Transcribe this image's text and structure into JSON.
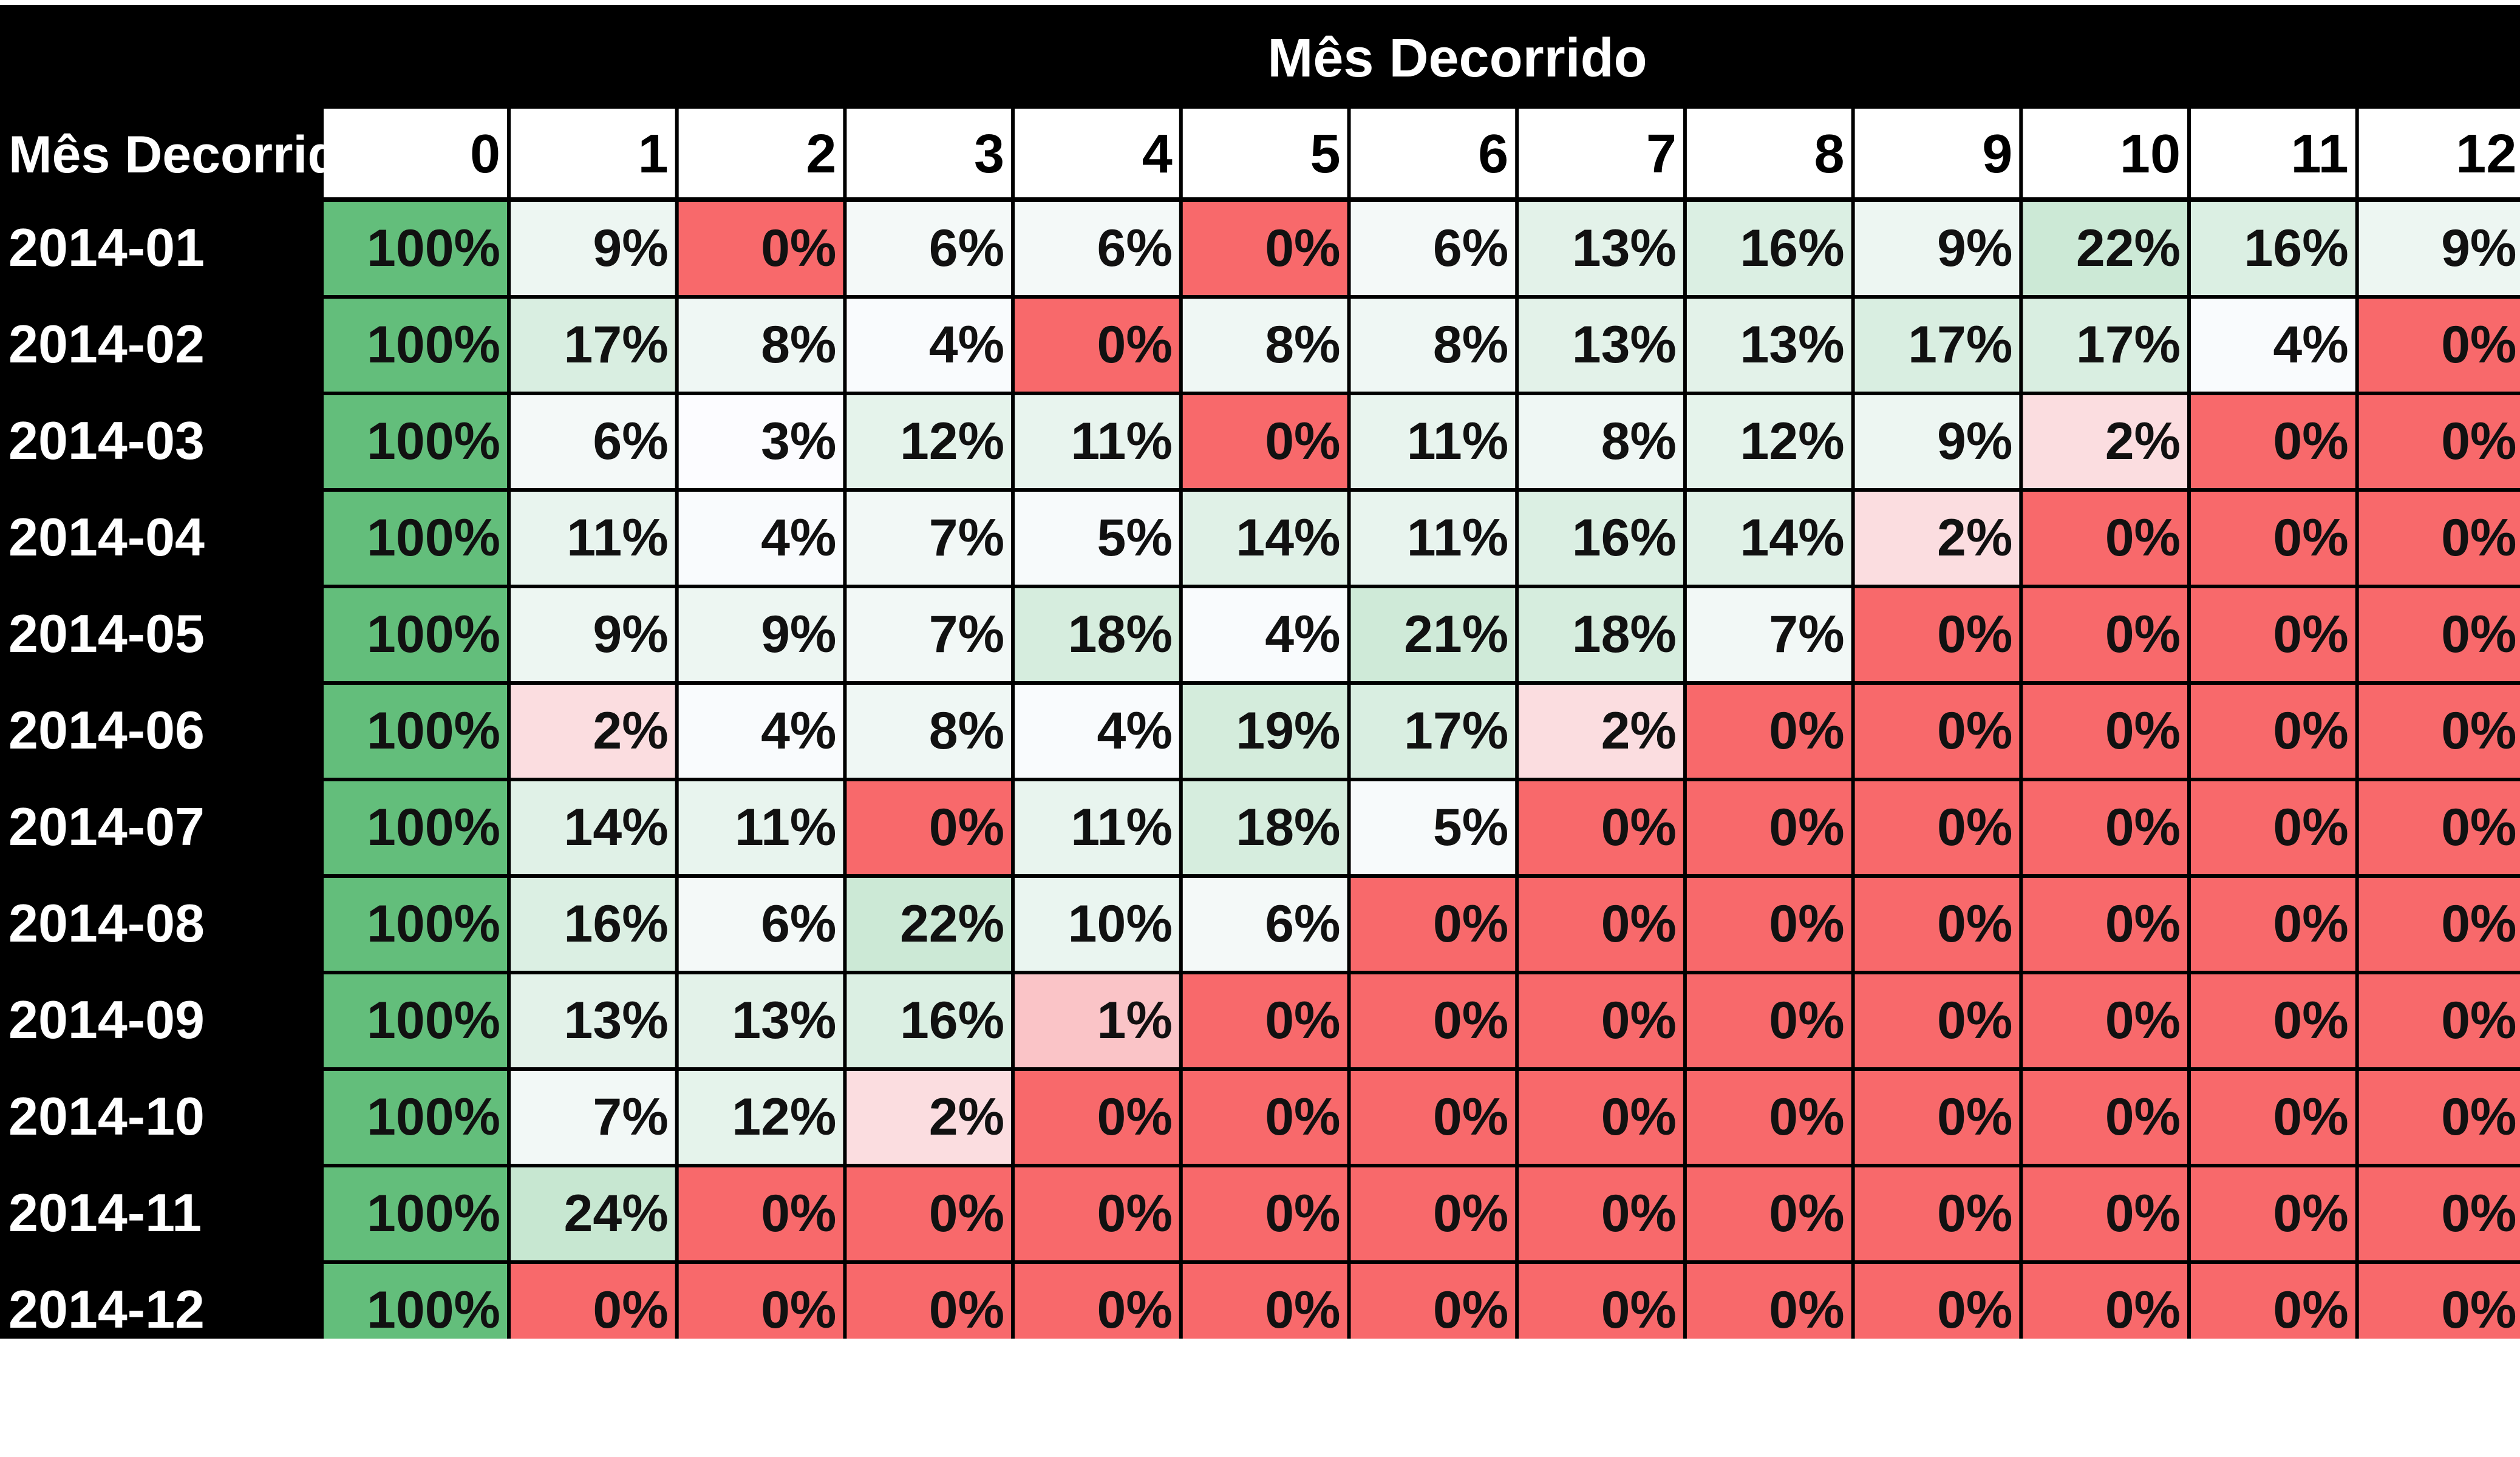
{
  "chart_data": {
    "type": "heatmap",
    "title": "Mês Decorrido",
    "row_header": "Mês Decorrido",
    "columns": [
      "0",
      "1",
      "2",
      "3",
      "4",
      "5",
      "6",
      "7",
      "8",
      "9",
      "10",
      "11",
      "12"
    ],
    "rows": [
      "2014-01",
      "2014-02",
      "2014-03",
      "2014-04",
      "2014-05",
      "2014-06",
      "2014-07",
      "2014-08",
      "2014-09",
      "2014-10",
      "2014-11",
      "2014-12"
    ],
    "values": [
      [
        100,
        9,
        0,
        6,
        6,
        0,
        6,
        13,
        16,
        9,
        22,
        16,
        9
      ],
      [
        100,
        17,
        8,
        4,
        0,
        8,
        8,
        13,
        13,
        17,
        17,
        4,
        0
      ],
      [
        100,
        6,
        3,
        12,
        11,
        0,
        11,
        8,
        12,
        9,
        2,
        0,
        0
      ],
      [
        100,
        11,
        4,
        7,
        5,
        14,
        11,
        16,
        14,
        2,
        0,
        0,
        0
      ],
      [
        100,
        9,
        9,
        7,
        18,
        4,
        21,
        18,
        7,
        0,
        0,
        0,
        0
      ],
      [
        100,
        2,
        4,
        8,
        4,
        19,
        17,
        2,
        0,
        0,
        0,
        0,
        0
      ],
      [
        100,
        14,
        11,
        0,
        11,
        18,
        5,
        0,
        0,
        0,
        0,
        0,
        0
      ],
      [
        100,
        16,
        6,
        22,
        10,
        6,
        0,
        0,
        0,
        0,
        0,
        0,
        0
      ],
      [
        100,
        13,
        13,
        16,
        1,
        0,
        0,
        0,
        0,
        0,
        0,
        0,
        0
      ],
      [
        100,
        7,
        12,
        2,
        0,
        0,
        0,
        0,
        0,
        0,
        0,
        0,
        0
      ],
      [
        100,
        24,
        0,
        0,
        0,
        0,
        0,
        0,
        0,
        0,
        0,
        0,
        0
      ],
      [
        100,
        0,
        0,
        0,
        0,
        0,
        0,
        0,
        0,
        0,
        0,
        0,
        0
      ]
    ],
    "value_suffix": "%",
    "colors": {
      "max": "#63be7b",
      "min": "#f8696b",
      "mid": "#fcfcff",
      "header_bg": "#000000",
      "header_text": "#ffffff"
    }
  }
}
